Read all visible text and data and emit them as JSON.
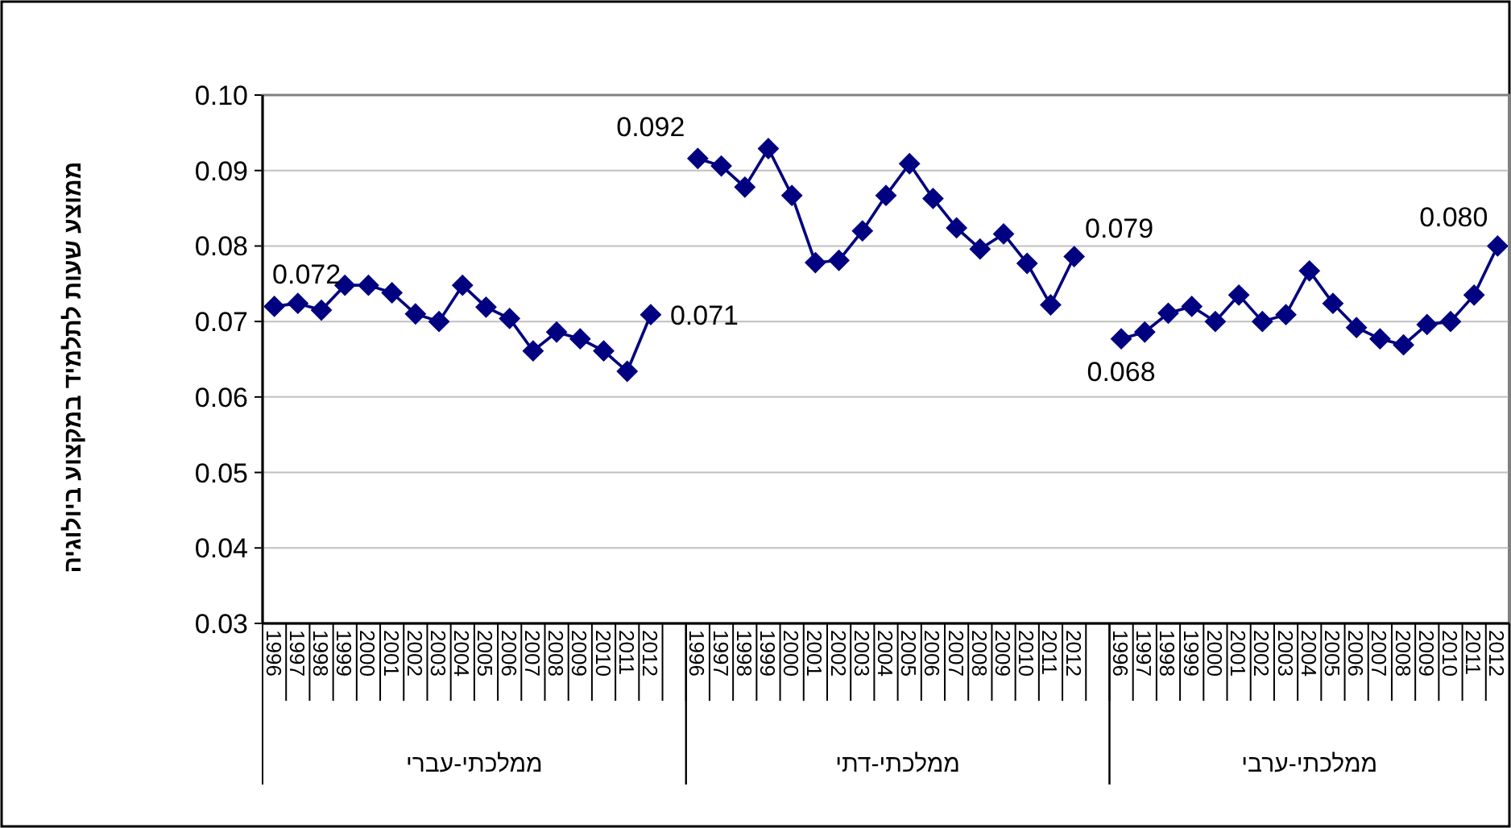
{
  "chart_data": {
    "type": "line",
    "ylabel": "ממוצע שעות לתלמיד במקצוע ביולוגיה",
    "categories": [
      "1996",
      "1997",
      "1998",
      "1999",
      "2000",
      "2001",
      "2002",
      "2003",
      "2004",
      "2005",
      "2006",
      "2007",
      "2008",
      "2009",
      "2010",
      "2011",
      "2012",
      null,
      "1996",
      "1997",
      "1998",
      "1999",
      "2000",
      "2001",
      "2002",
      "2003",
      "2004",
      "2005",
      "2006",
      "2007",
      "2008",
      "2009",
      "2010",
      "2011",
      "2012",
      null,
      "1996",
      "1997",
      "1998",
      "1999",
      "2000",
      "2001",
      "2002",
      "2003",
      "2004",
      "2005",
      "2006",
      "2007",
      "2008",
      "2009",
      "2010",
      "2011",
      "2012"
    ],
    "series": [
      {
        "color": "#000080",
        "values": [
          0.072,
          0.0724,
          0.0715,
          0.0748,
          0.0748,
          0.0738,
          0.071,
          0.07,
          0.0748,
          0.0719,
          0.0704,
          0.0661,
          0.0686,
          0.0677,
          0.0661,
          0.0634,
          0.0709,
          null,
          null,
          null,
          null,
          null,
          null,
          null,
          null,
          null,
          null,
          null,
          null,
          null,
          null,
          null,
          null,
          null,
          null,
          null,
          null,
          null,
          null,
          null,
          null,
          null,
          null,
          null,
          null,
          null,
          null,
          null,
          null,
          null,
          null,
          null,
          null
        ],
        "value_labels": [
          "0.072",
          null,
          null,
          null,
          null,
          null,
          null,
          null,
          null,
          null,
          null,
          null,
          null,
          null,
          null,
          null,
          "0.071",
          null,
          null,
          null,
          null,
          null,
          null,
          null,
          null,
          null,
          null,
          null,
          null,
          null,
          null,
          null,
          null,
          null,
          null,
          null,
          null,
          null,
          null,
          null,
          null,
          null,
          null,
          null,
          null,
          null,
          null,
          null,
          null,
          null,
          null,
          null,
          null
        ]
      },
      {
        "color": "#000080",
        "values": [
          null,
          null,
          null,
          null,
          null,
          null,
          null,
          null,
          null,
          null,
          null,
          null,
          null,
          null,
          null,
          null,
          null,
          null,
          0.0916,
          0.0906,
          0.0878,
          0.0929,
          0.0867,
          0.0778,
          0.0781,
          0.082,
          0.0867,
          0.0909,
          0.0863,
          0.0824,
          0.0796,
          0.0816,
          0.0777,
          0.0722,
          0.0786,
          null,
          null,
          null,
          null,
          null,
          null,
          null,
          null,
          null,
          null,
          null,
          null,
          null,
          null,
          null,
          null,
          null,
          null
        ],
        "value_labels": [
          null,
          null,
          null,
          null,
          null,
          null,
          null,
          null,
          null,
          null,
          null,
          null,
          null,
          null,
          null,
          null,
          null,
          null,
          "0.092",
          null,
          null,
          null,
          null,
          null,
          null,
          null,
          null,
          null,
          null,
          null,
          null,
          null,
          null,
          null,
          "0.079",
          null,
          null,
          null,
          null,
          null,
          null,
          null,
          null,
          null,
          null,
          null,
          null,
          null,
          null,
          null,
          null,
          null,
          null
        ]
      },
      {
        "color": "#000080",
        "values": [
          null,
          null,
          null,
          null,
          null,
          null,
          null,
          null,
          null,
          null,
          null,
          null,
          null,
          null,
          null,
          null,
          null,
          null,
          null,
          null,
          null,
          null,
          null,
          null,
          null,
          null,
          null,
          null,
          null,
          null,
          null,
          null,
          null,
          null,
          null,
          null,
          0.0677,
          0.0686,
          0.0711,
          0.072,
          0.07,
          0.0735,
          0.07,
          0.0709,
          0.0767,
          0.0724,
          0.0692,
          0.0677,
          0.0669,
          0.0696,
          0.07,
          0.0735,
          0.08
        ],
        "value_labels": [
          null,
          null,
          null,
          null,
          null,
          null,
          null,
          null,
          null,
          null,
          null,
          null,
          null,
          null,
          null,
          null,
          null,
          null,
          null,
          null,
          null,
          null,
          null,
          null,
          null,
          null,
          null,
          null,
          null,
          null,
          null,
          null,
          null,
          null,
          null,
          null,
          "0.068",
          null,
          null,
          null,
          null,
          null,
          null,
          null,
          null,
          null,
          null,
          null,
          null,
          null,
          null,
          null,
          "0.080"
        ]
      }
    ],
    "ylim": [
      0.03,
      0.1
    ],
    "yticks": [
      {
        "value": 0.03,
        "label": "0.03"
      },
      {
        "value": 0.04,
        "label": "0.04"
      },
      {
        "value": 0.05,
        "label": "0.05"
      },
      {
        "value": 0.06,
        "label": "0.06"
      },
      {
        "value": 0.07,
        "label": "0.07"
      },
      {
        "value": 0.08,
        "label": "0.08"
      },
      {
        "value": 0.09,
        "label": "0.09"
      },
      {
        "value": 0.1,
        "label": "0.10"
      }
    ],
    "annotations": [
      "ממלכתי-עברי",
      "ממלכתי-דתי",
      "ממלכתי-ערבי"
    ],
    "grid": "y",
    "marker": "diamond",
    "line_style": "solid"
  }
}
